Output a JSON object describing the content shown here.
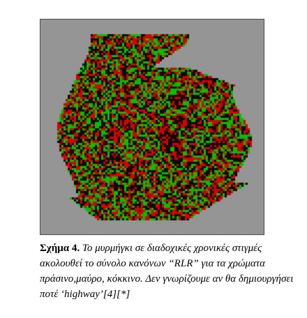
{
  "figure": {
    "background_color": "#888888",
    "grid_line_color": "#9a9a9a",
    "cell_colors": [
      "#00c000",
      "#0a0a0a",
      "#d80000"
    ],
    "rule": "RLR"
  },
  "caption": {
    "label": "Σχήμα 4.",
    "text": "Το μυρμήγκι σε διαδοχικές χρονικές στιγμές ακολουθεί το σύνολο κανόνων “RLR” για τα χρώματα πράσινο,μαύρο, κόκκινο. Δεν γνωρίζουμε αν θα δημιουργήσει ποτέ ‘highway’[4][*]"
  }
}
